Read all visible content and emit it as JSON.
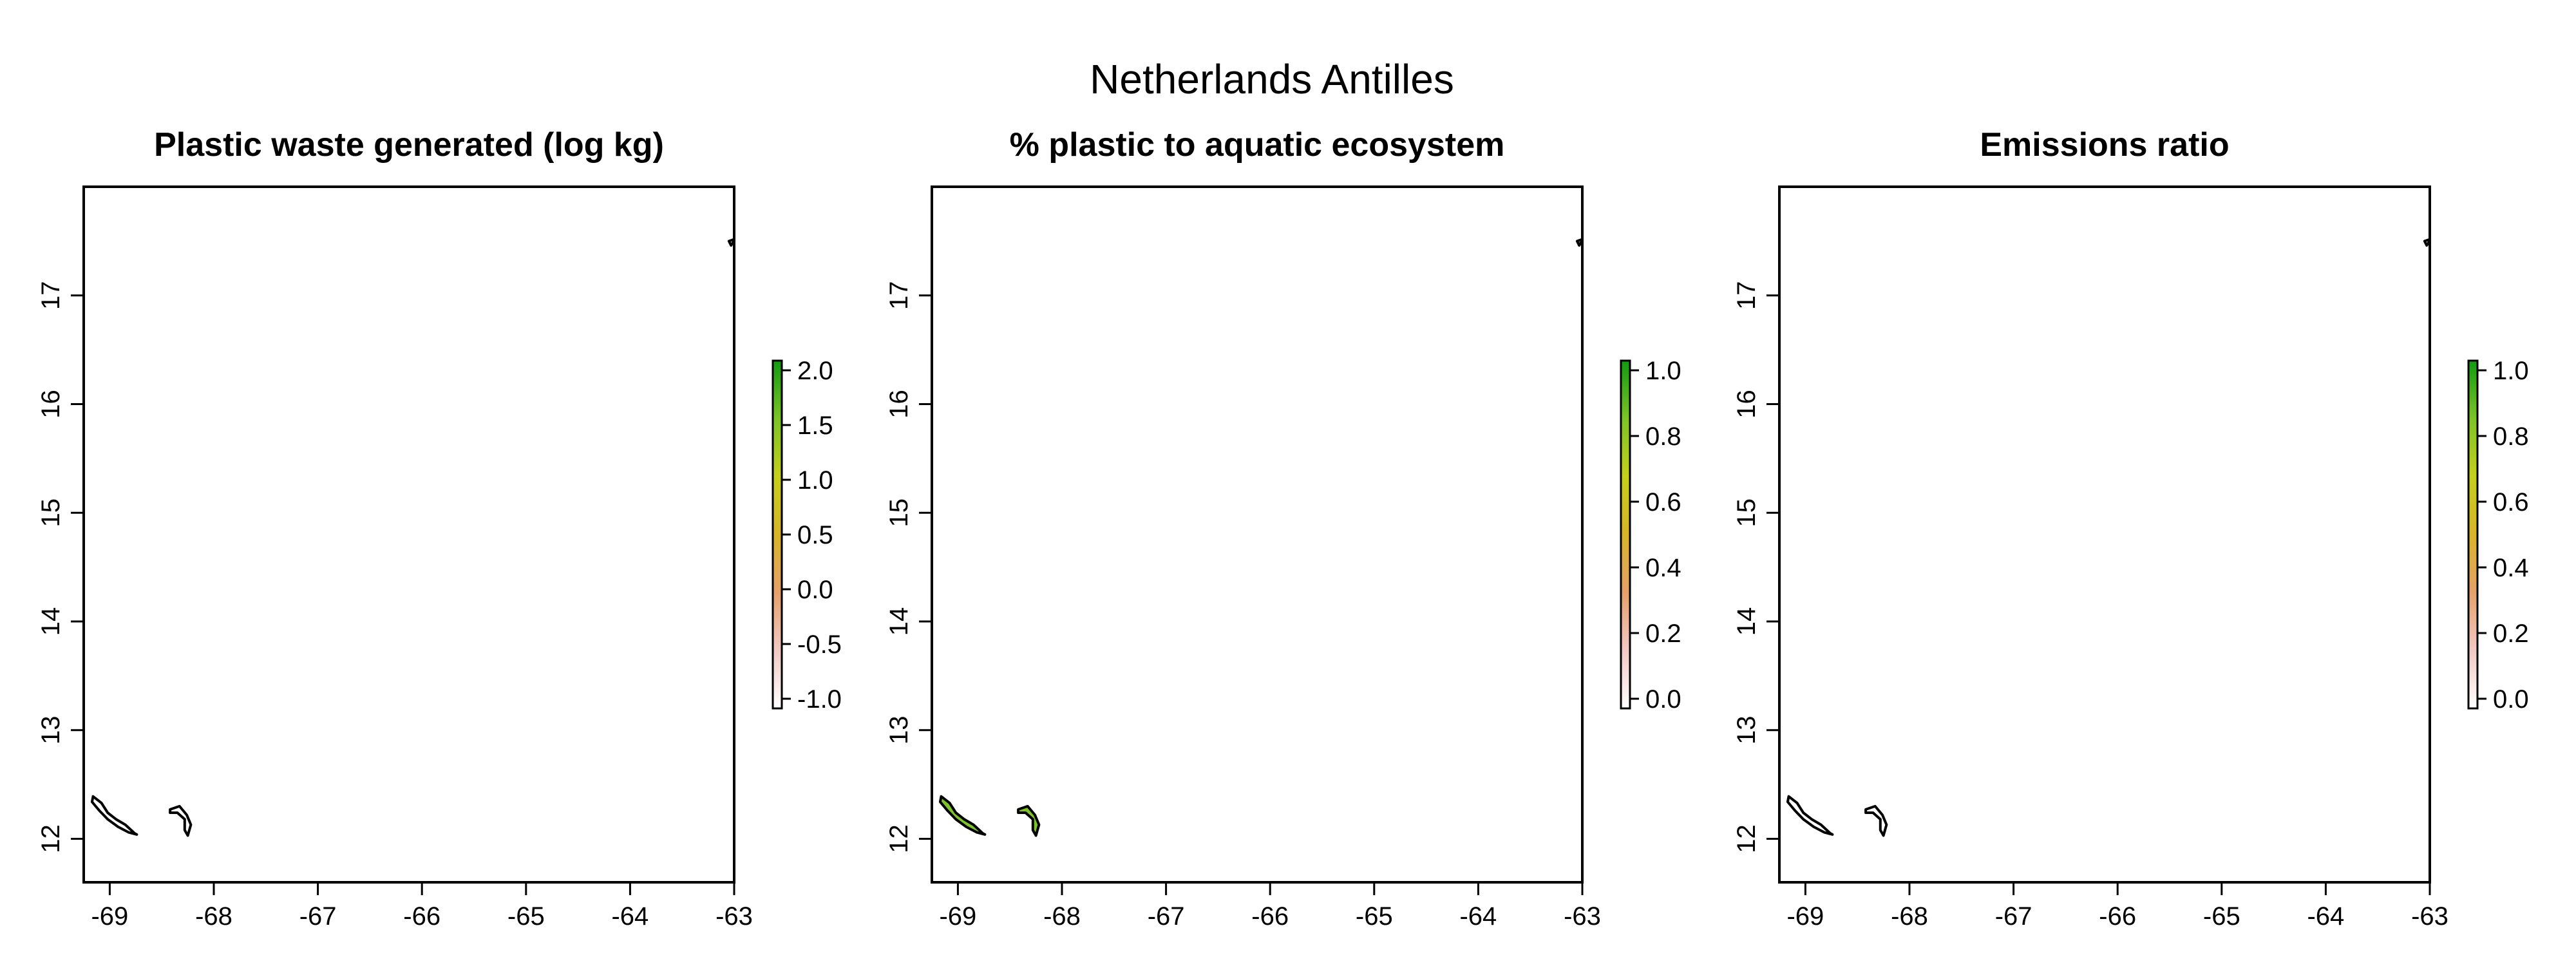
{
  "figure": {
    "title": "Netherlands Antilles"
  },
  "panels": [
    {
      "title": "Plastic waste generated (log kg)",
      "colorbar_ticks": [
        "2.0",
        "1.5",
        "1.0",
        "0.5",
        "0.0",
        "-0.5",
        "-1.0"
      ],
      "island_fill": "#ffffff"
    },
    {
      "title": "% plastic to aquatic ecosystem",
      "colorbar_ticks": [
        "1.0",
        "0.8",
        "0.6",
        "0.4",
        "0.2",
        "0.0"
      ],
      "island_fill": "#7cc427"
    },
    {
      "title": "Emissions ratio",
      "colorbar_ticks": [
        "1.0",
        "0.8",
        "0.6",
        "0.4",
        "0.2",
        "0.0"
      ],
      "island_fill": "#ffffff"
    }
  ],
  "axes": {
    "x_ticks": [
      "-69",
      "-68",
      "-67",
      "-66",
      "-65",
      "-64",
      "-63"
    ],
    "y_ticks": [
      "17",
      "16",
      "15",
      "14",
      "13",
      "12"
    ],
    "xlim": [
      -69.25,
      -63.0
    ],
    "ylim": [
      11.6,
      18.0
    ]
  },
  "colors": {
    "colorbar_gradient": [
      "#ffffff",
      "#f2c9c4",
      "#e6a06a",
      "#d8b428",
      "#c5cf1c",
      "#7cc427",
      "#129a12"
    ]
  }
}
